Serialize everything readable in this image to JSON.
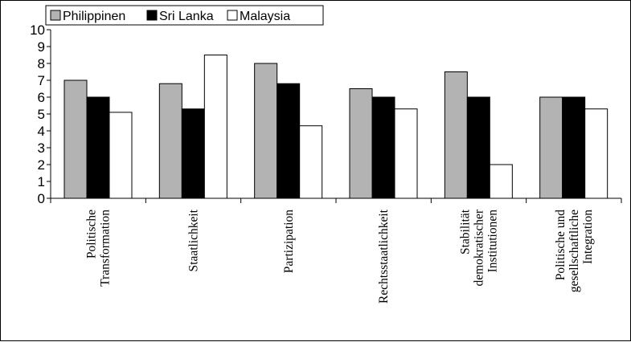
{
  "chart_data": {
    "type": "bar",
    "categories": [
      [
        "Politische",
        "Transformation"
      ],
      [
        "Staatlichkeit"
      ],
      [
        "Partizipation"
      ],
      [
        "Rechtsstaatlichkeit"
      ],
      [
        "Stabilität",
        "demokratischer",
        "Institutionen"
      ],
      [
        "Politische und",
        "gesellschaftliche",
        "Integration"
      ]
    ],
    "series": [
      {
        "name": "Philippinen",
        "color": "#b3b3b3",
        "values": [
          7.0,
          6.8,
          8.0,
          6.5,
          7.5,
          6.0
        ]
      },
      {
        "name": "Sri Lanka",
        "color": "#000000",
        "values": [
          6.0,
          5.3,
          6.8,
          6.0,
          6.0,
          6.0
        ]
      },
      {
        "name": "Malaysia",
        "color": "#ffffff",
        "values": [
          5.1,
          8.5,
          4.3,
          5.3,
          2.0,
          5.3
        ]
      }
    ],
    "yticks": [
      0,
      1,
      2,
      3,
      4,
      5,
      6,
      7,
      8,
      9,
      10
    ],
    "ylim": [
      0,
      10
    ],
    "grid": false,
    "legend_position": "top-left"
  }
}
